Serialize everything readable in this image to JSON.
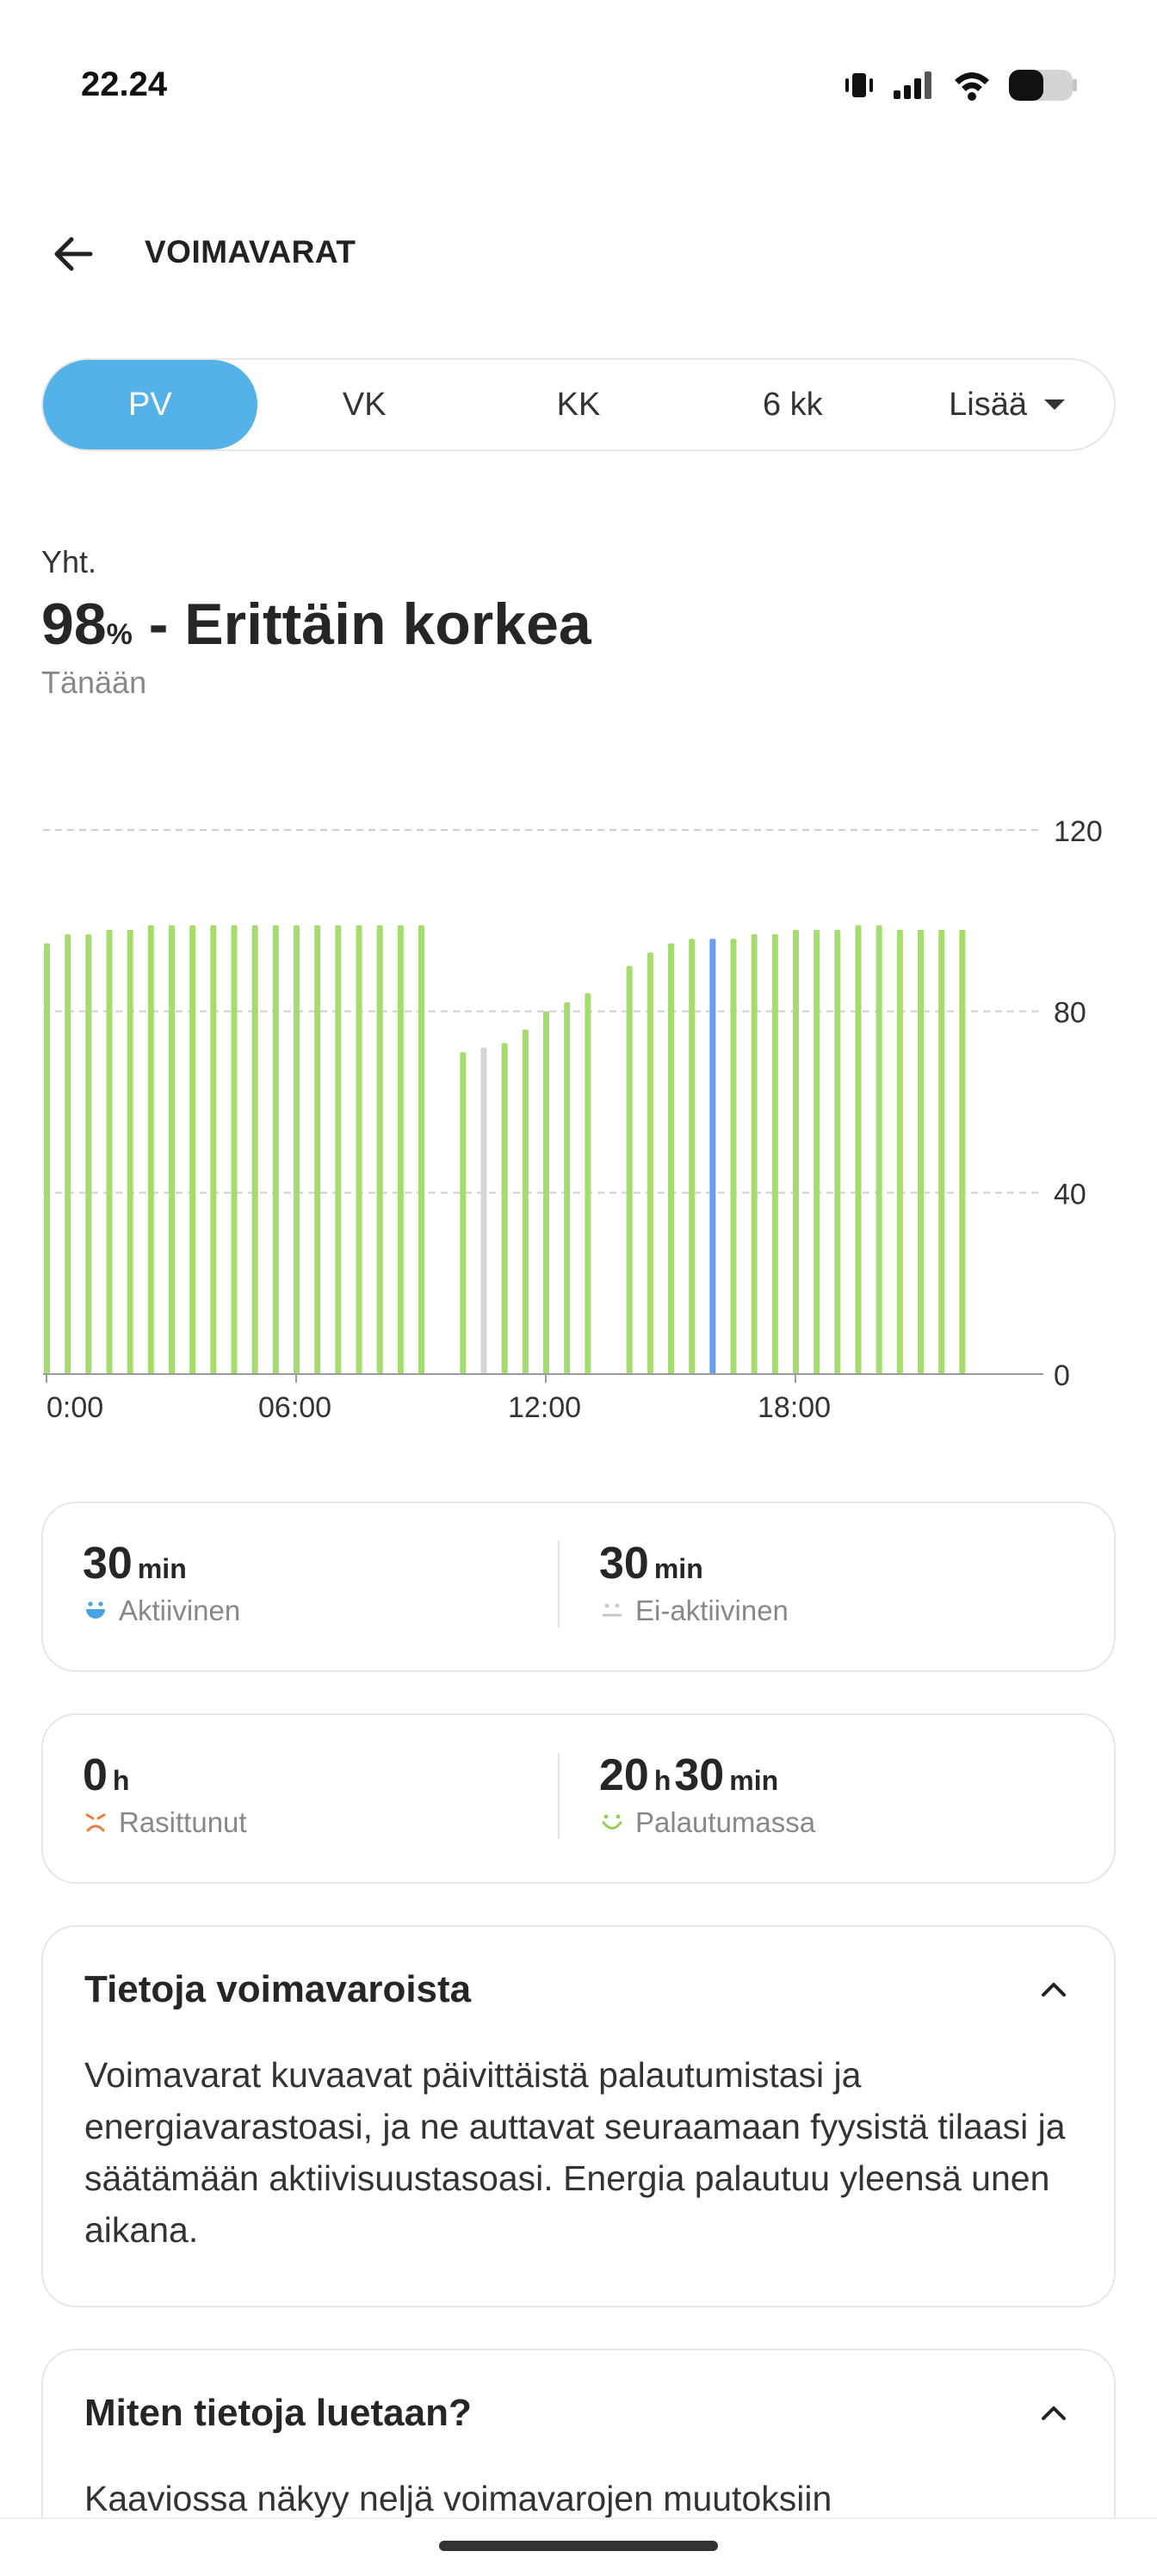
{
  "status_bar": {
    "time": "22.24",
    "icons": [
      "vibrate-icon",
      "signal-icon",
      "wifi-icon",
      "battery-icon"
    ]
  },
  "header": {
    "back_icon": "arrow-left-icon",
    "title": "VOIMAVARAT"
  },
  "tabs": [
    {
      "label": "PV",
      "active": true
    },
    {
      "label": "VK",
      "active": false
    },
    {
      "label": "KK",
      "active": false
    },
    {
      "label": "6 kk",
      "active": false
    },
    {
      "label": "Lisää",
      "active": false,
      "dropdown": true
    }
  ],
  "summary": {
    "label": "Yht.",
    "value": "98",
    "unit": "%",
    "level": " - Erittäin korkea",
    "period": "Tänään"
  },
  "colors": {
    "accent": "#55b2e8",
    "bar_recovering": "#a4dc6e",
    "bar_inactive": "#d9d2d8",
    "bar_selected": "#6b9cf0"
  },
  "chart_data": {
    "type": "bar",
    "x_ticks": [
      "0:00",
      "06:00",
      "12:00",
      "18:00"
    ],
    "y_ticks": [
      "120",
      "80",
      "40",
      "0"
    ],
    "ylim": [
      0,
      120
    ],
    "xlim": [
      0,
      24
    ],
    "grid": true,
    "bar_interval_minutes": 30,
    "values": [
      95,
      97,
      97,
      98,
      98,
      99,
      99,
      99,
      99,
      99,
      99,
      99,
      99,
      99,
      99,
      99,
      99,
      99,
      99,
      null,
      71,
      72,
      73,
      76,
      80,
      82,
      84,
      null,
      90,
      93,
      95,
      96,
      96,
      96,
      97,
      97,
      98,
      98,
      98,
      99,
      99,
      98,
      98,
      98,
      98
    ],
    "bar_states": [
      "r",
      "r",
      "r",
      "r",
      "r",
      "r",
      "r",
      "r",
      "r",
      "r",
      "r",
      "r",
      "r",
      "r",
      "r",
      "r",
      "r",
      "r",
      "r",
      "n",
      "r",
      "i",
      "r",
      "r",
      "r",
      "r",
      "r",
      "n",
      "r",
      "r",
      "r",
      "r",
      "s",
      "r",
      "r",
      "r",
      "r",
      "r",
      "r",
      "r",
      "r",
      "r",
      "r",
      "r",
      "r"
    ]
  },
  "stats": {
    "active": {
      "value": "30",
      "unit": "min",
      "label": "Aktiivinen",
      "icon": "active-face-icon"
    },
    "inactive": {
      "value": "30",
      "unit": "min",
      "label": "Ei-aktiivinen",
      "icon": "inactive-face-icon"
    },
    "stressed": {
      "value": "0",
      "unit": "h",
      "label": "Rasittunut",
      "icon": "stressed-face-icon"
    },
    "recovering": {
      "value_h": "20",
      "unit_h": "h",
      "value_min": "30",
      "unit_min": "min",
      "label": "Palautumassa",
      "icon": "recovering-face-icon"
    }
  },
  "info_about": {
    "title": "Tietoja voimavaroista",
    "text": "Voimavarat kuvaavat päivittäistä palautumistasi ja energiavarastoasi, ja ne auttavat seuraamaan fyysistä tilaasi ja säätämään aktiivisuustasoasi. Energia palautuu yleensä unen aikana."
  },
  "info_howto": {
    "title": "Miten tietoja luetaan?",
    "text": "Kaaviossa näkyy neljä voimavarojen muutoksiin"
  }
}
